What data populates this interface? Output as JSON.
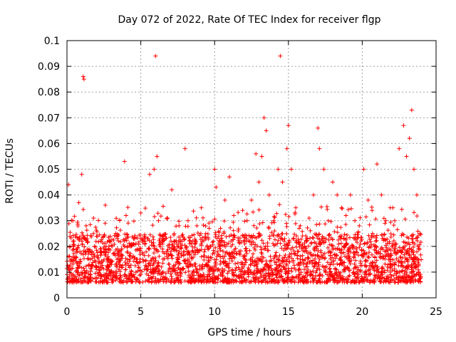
{
  "chart_data": {
    "type": "scatter",
    "title": "Day 072 of 2022, Rate Of TEC Index for receiver flgp",
    "xlabel": "GPS time / hours",
    "ylabel": "ROTI / TECUs",
    "xlim": [
      0,
      25
    ],
    "ylim": [
      0,
      0.1
    ],
    "grid": true,
    "marker": "+",
    "color": "#ff0000",
    "x_ticks": [
      {
        "value": 0,
        "label": "0"
      },
      {
        "value": 5,
        "label": "5"
      },
      {
        "value": 10,
        "label": "10"
      },
      {
        "value": 15,
        "label": "15"
      },
      {
        "value": 20,
        "label": "20"
      },
      {
        "value": 25,
        "label": "25"
      }
    ],
    "y_ticks": [
      {
        "value": 0,
        "label": "0"
      },
      {
        "value": 0.01,
        "label": "0.01"
      },
      {
        "value": 0.02,
        "label": "0.02"
      },
      {
        "value": 0.03,
        "label": "0.03"
      },
      {
        "value": 0.04,
        "label": "0.04"
      },
      {
        "value": 0.05,
        "label": "0.05"
      },
      {
        "value": 0.06,
        "label": "0.06"
      },
      {
        "value": 0.07,
        "label": "0.07"
      },
      {
        "value": 0.08,
        "label": "0.08"
      },
      {
        "value": 0.09,
        "label": "0.09"
      },
      {
        "value": 0.1,
        "label": "0.1"
      }
    ],
    "series": [
      {
        "name": "ROTI flgp",
        "x": [
          0.1,
          0.2,
          0.4,
          0.6,
          0.8,
          1.0,
          1.1,
          1.15,
          1.3,
          1.5,
          1.8,
          2.0,
          2.3,
          2.6,
          3.0,
          3.3,
          3.6,
          3.9,
          4.0,
          4.3,
          4.7,
          5.0,
          5.3,
          5.6,
          5.9,
          6.0,
          6.1,
          6.2,
          6.5,
          6.8,
          7.1,
          7.3,
          7.6,
          8.0,
          8.2,
          8.5,
          8.8,
          9.1,
          9.4,
          9.7,
          10.0,
          10.1,
          10.4,
          10.7,
          11.0,
          11.3,
          11.6,
          11.9,
          12.2,
          12.5,
          12.8,
          13.0,
          13.2,
          13.35,
          13.5,
          13.7,
          14.0,
          14.3,
          14.45,
          14.6,
          14.9,
          15.0,
          15.2,
          15.5,
          15.8,
          16.1,
          16.4,
          16.7,
          17.0,
          17.1,
          17.4,
          17.7,
          18.0,
          18.3,
          18.6,
          18.9,
          19.2,
          19.5,
          19.8,
          20.1,
          20.4,
          20.7,
          21.0,
          21.3,
          21.6,
          21.9,
          22.2,
          22.5,
          22.8,
          23.0,
          23.2,
          23.35,
          23.5,
          23.7,
          23.9
        ],
        "y": [
          0.044,
          0.02,
          0.03,
          0.016,
          0.037,
          0.048,
          0.086,
          0.085,
          0.028,
          0.013,
          0.031,
          0.012,
          0.022,
          0.036,
          0.014,
          0.025,
          0.018,
          0.053,
          0.032,
          0.02,
          0.015,
          0.033,
          0.022,
          0.048,
          0.05,
          0.094,
          0.055,
          0.03,
          0.024,
          0.031,
          0.042,
          0.022,
          0.018,
          0.058,
          0.03,
          0.022,
          0.028,
          0.035,
          0.025,
          0.02,
          0.05,
          0.043,
          0.027,
          0.038,
          0.047,
          0.032,
          0.026,
          0.034,
          0.03,
          0.038,
          0.056,
          0.045,
          0.055,
          0.07,
          0.065,
          0.04,
          0.03,
          0.05,
          0.094,
          0.045,
          0.058,
          0.067,
          0.05,
          0.035,
          0.028,
          0.02,
          0.031,
          0.04,
          0.066,
          0.058,
          0.05,
          0.03,
          0.045,
          0.04,
          0.035,
          0.032,
          0.04,
          0.03,
          0.028,
          0.05,
          0.038,
          0.025,
          0.052,
          0.04,
          0.03,
          0.035,
          0.03,
          0.058,
          0.067,
          0.055,
          0.062,
          0.073,
          0.05,
          0.04,
          0.025
        ]
      }
    ],
    "dense_band": {
      "x_range": [
        0,
        24
      ],
      "typical_min": 0.006,
      "typical_max": 0.025,
      "median": 0.012
    }
  }
}
